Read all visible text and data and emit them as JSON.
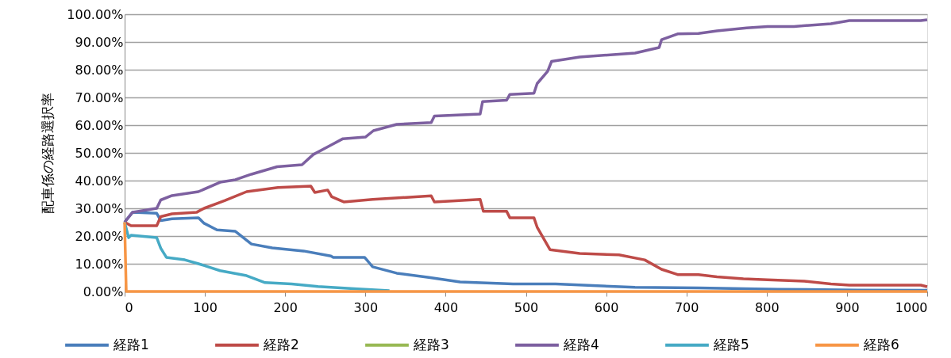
{
  "chart_data": {
    "type": "line",
    "ylabel": "配車係の経路選択率",
    "xlim": [
      0,
      1000
    ],
    "xticks": [
      0,
      100,
      200,
      300,
      400,
      500,
      600,
      700,
      800,
      900,
      1000
    ],
    "ylim": [
      0,
      100
    ],
    "yticks": [
      {
        "value": 0,
        "label": "0.00%"
      },
      {
        "value": 10,
        "label": "10.00%"
      },
      {
        "value": 20,
        "label": "20.00%"
      },
      {
        "value": 30,
        "label": "30.00%"
      },
      {
        "value": 40,
        "label": "40.00%"
      },
      {
        "value": 50,
        "label": "50.00%"
      },
      {
        "value": 60,
        "label": "60.00%"
      },
      {
        "value": 70,
        "label": "70.00%"
      },
      {
        "value": 80,
        "label": "80.00%"
      },
      {
        "value": 90,
        "label": "90.00%"
      },
      {
        "value": 100,
        "label": "100.00%"
      }
    ],
    "grid": "y",
    "legend": "bottom",
    "marker": "none",
    "line_style": "solid",
    "series": [
      {
        "name": "経路1",
        "color": "#4a7ebb",
        "x": [
          0,
          10,
          40,
          45,
          59,
          92,
          99,
          115,
          138,
          158,
          184,
          223,
          257,
          260,
          290,
          299,
          309,
          339,
          379,
          418,
          484,
          537,
          636,
          715,
          814,
          913,
          1000
        ],
        "values": [
          25,
          28.6,
          28.2,
          25.6,
          26.2,
          26.6,
          24.6,
          22.2,
          21.7,
          17.1,
          15.7,
          14.6,
          12.8,
          12.3,
          12.3,
          12.3,
          8.9,
          6.6,
          5.1,
          3.4,
          2.7,
          2.7,
          1.5,
          1.3,
          0.8,
          0.5,
          0.4
        ]
      },
      {
        "name": "経路2",
        "color": "#be4b48",
        "x": [
          0,
          8,
          40,
          45,
          59,
          90,
          99,
          125,
          152,
          191,
          232,
          237,
          253,
          258,
          273,
          309,
          382,
          386,
          443,
          447,
          476,
          480,
          510,
          514,
          530,
          567,
          616,
          648,
          669,
          689,
          715,
          738,
          771,
          801,
          847,
          880,
          903,
          992,
          1000
        ],
        "values": [
          25,
          23.7,
          23.7,
          27,
          28,
          28.6,
          30,
          32.8,
          36,
          37.5,
          38,
          35.7,
          36.6,
          34.2,
          32.3,
          33.2,
          34.5,
          32.3,
          33.2,
          28.9,
          28.9,
          26.6,
          26.6,
          23.2,
          15.1,
          13.7,
          13.2,
          11.4,
          8,
          6.1,
          6.1,
          5.3,
          4.6,
          4.2,
          3.7,
          2.7,
          2.3,
          2.3,
          1.7
        ]
      },
      {
        "name": "経路3",
        "color": "#98b954"
      },
      {
        "name": "経路4",
        "color": "#7d60a0",
        "x": [
          0,
          10,
          40,
          45,
          59,
          92,
          119,
          138,
          158,
          190,
          221,
          235,
          257,
          272,
          300,
          310,
          339,
          382,
          386,
          443,
          446,
          476,
          480,
          510,
          514,
          527,
          532,
          567,
          636,
          666,
          669,
          689,
          715,
          738,
          775,
          801,
          834,
          880,
          903,
          992,
          1000
        ],
        "values": [
          25,
          28.6,
          30,
          33,
          34.6,
          36,
          39.4,
          40.3,
          42.3,
          45,
          45.7,
          49.4,
          52.8,
          55.1,
          55.7,
          58,
          60.3,
          60.9,
          63.3,
          64,
          68.5,
          69,
          71.1,
          71.5,
          75,
          79.4,
          83,
          84.6,
          86,
          88,
          90.8,
          92.9,
          93.1,
          94,
          95.1,
          95.6,
          95.6,
          96.6,
          97.7,
          97.7,
          98
        ]
      },
      {
        "name": "経路5",
        "color": "#46aac5",
        "x": [
          0,
          5,
          8,
          40,
          45,
          52,
          75,
          92,
          119,
          152,
          175,
          208,
          241,
          290,
          330
        ],
        "values": [
          25,
          19.4,
          20.3,
          19.4,
          15.6,
          12.3,
          11.4,
          10,
          7.5,
          5.7,
          3.2,
          2.7,
          1.8,
          0.9,
          0.3
        ]
      },
      {
        "name": "経路6",
        "color": "#f79646",
        "x": [
          0,
          2,
          1000
        ],
        "values": [
          25,
          0,
          0
        ]
      }
    ]
  }
}
